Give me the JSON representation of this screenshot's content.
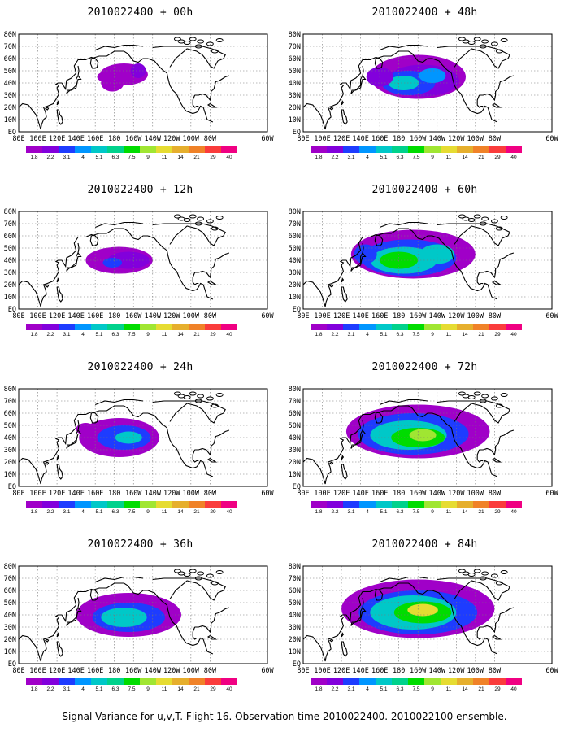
{
  "base_time": "2010022400",
  "panels": [
    {
      "title": "2010022400 + 00h",
      "lead_hours": 0
    },
    {
      "title": "2010022400 + 48h",
      "lead_hours": 48
    },
    {
      "title": "2010022400 + 12h",
      "lead_hours": 12
    },
    {
      "title": "2010022400 + 60h",
      "lead_hours": 60
    },
    {
      "title": "2010022400 + 24h",
      "lead_hours": 24
    },
    {
      "title": "2010022400 + 72h",
      "lead_hours": 72
    },
    {
      "title": "2010022400 + 36h",
      "lead_hours": 36
    },
    {
      "title": "2010022400 + 84h",
      "lead_hours": 84
    }
  ],
  "lat_labels": [
    "80N",
    "70N",
    "60N",
    "50N",
    "40N",
    "30N",
    "20N",
    "10N",
    "EQ"
  ],
  "lon_labels": [
    "80E",
    "100E",
    "120E",
    "140E",
    "160E",
    "180",
    "160W",
    "140W",
    "120W",
    "100W",
    "80W",
    "60W"
  ],
  "colorbar": {
    "levels": [
      "1.8",
      "2.2",
      "3.1",
      "4",
      "5.1",
      "6.3",
      "7.5",
      "9",
      "11",
      "14",
      "21",
      "29",
      "40"
    ],
    "colors": [
      "#a000c8",
      "#8200dc",
      "#1e3cff",
      "#0096ff",
      "#00c8c8",
      "#00d28c",
      "#00dc00",
      "#a0e632",
      "#e6dc32",
      "#e6af2d",
      "#f08228",
      "#fa3c3c",
      "#f00082"
    ]
  },
  "caption": "Signal Variance for u,v,T. Flight 16. Observation time 2010022400. 2010022100 ensemble."
}
